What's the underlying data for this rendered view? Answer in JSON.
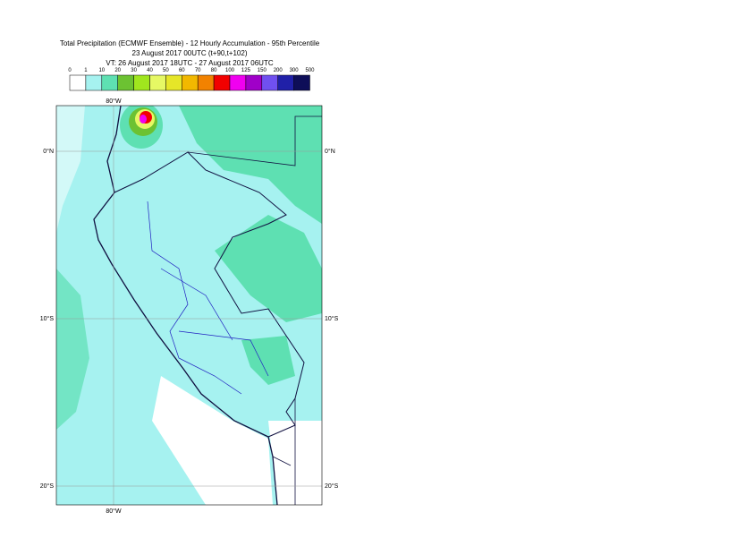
{
  "header": {
    "title_lines": [
      "Total Precipitation (ECMWF Ensemble) - 12 Hourly Accumulation - 95th Percentile",
      "23 August 2017 00UTC (t+90,t+102)",
      "VT: 26 August 2017 18UTC - 27 August 2017 06UTC"
    ]
  },
  "legend": {
    "labels": [
      0,
      1,
      10,
      20,
      30,
      40,
      50,
      60,
      70,
      80,
      100,
      125,
      150,
      200,
      300,
      500
    ],
    "colors": [
      "#ffffff",
      "#a6f2f0",
      "#5ee0b2",
      "#6cc232",
      "#a0e61e",
      "#e6f864",
      "#e6e628",
      "#f2b800",
      "#f28200",
      "#f20000",
      "#f000f0",
      "#a000c8",
      "#7050f0",
      "#2020a8",
      "#0e0e58"
    ]
  },
  "map": {
    "lat_labels": [
      "0°N",
      "10°S",
      "20°S"
    ],
    "lon_labels": [
      "80°W"
    ]
  }
}
